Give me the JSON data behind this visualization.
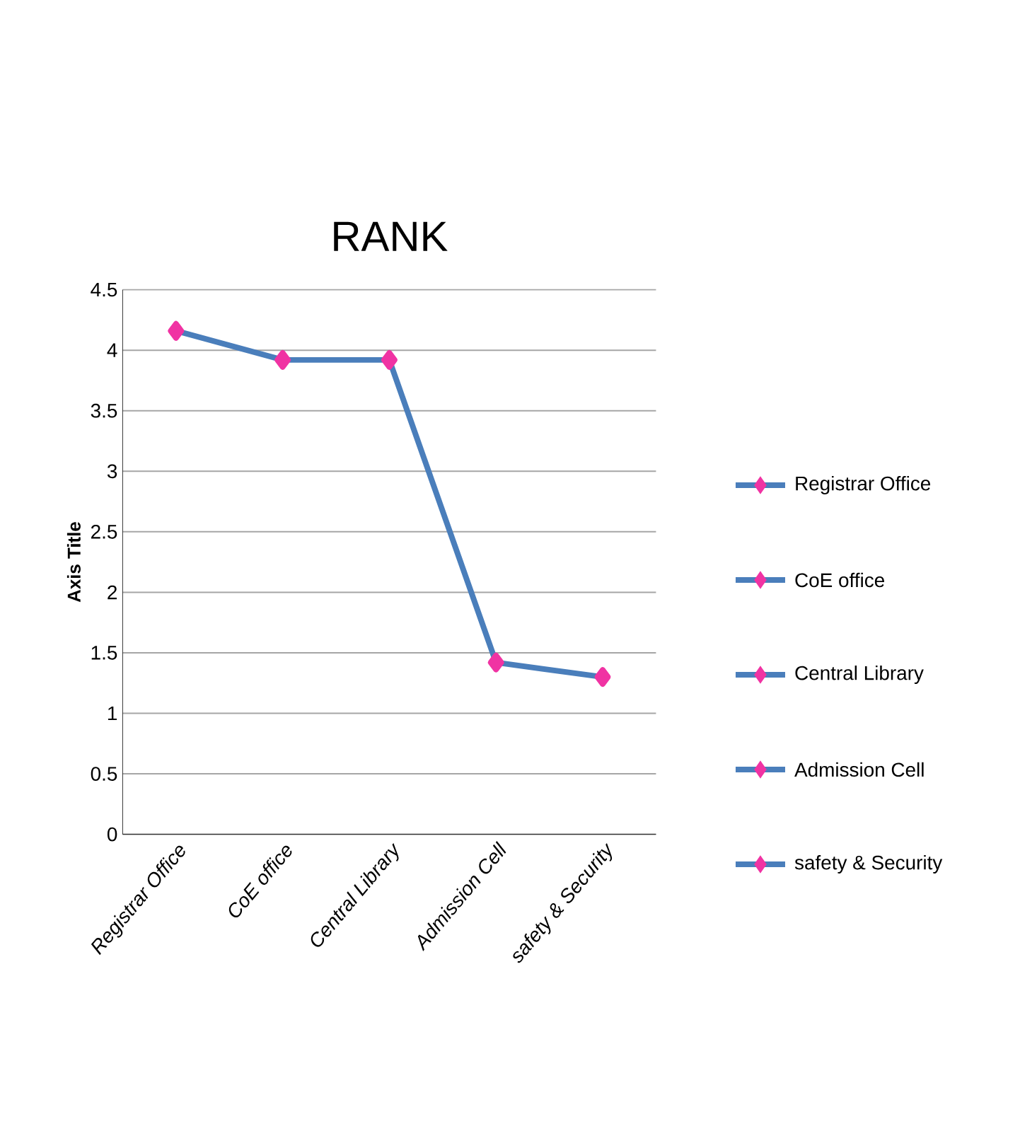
{
  "chart_data": {
    "type": "line",
    "title": "RANK",
    "ylabel": "Axis Title",
    "categories": [
      "Registrar Office",
      "CoE office",
      "Central Library",
      "Admission Cell",
      "safety & Security"
    ],
    "series": [
      {
        "color": "#4a7ebb",
        "values": [
          4.16,
          3.92,
          3.92,
          1.42,
          1.3
        ]
      }
    ],
    "ylim": [
      0,
      4.5
    ],
    "yticks": [
      0,
      0.5,
      1,
      1.5,
      2,
      2.5,
      3,
      3.5,
      4,
      4.5
    ],
    "grid": "y",
    "marker": "diamond",
    "line_style": "solid"
  }
}
